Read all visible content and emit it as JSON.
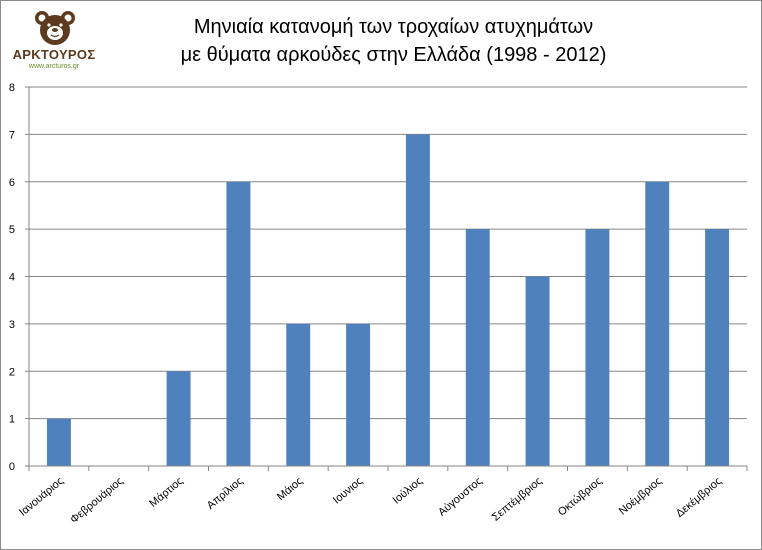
{
  "logo": {
    "name": "ΑΡΚΤΟΥΡΟΣ",
    "url": "www.arcturos.gr",
    "icon": "bear-head-icon",
    "colors": {
      "brown": "#5b3a1e",
      "green": "#6b8f2a"
    }
  },
  "chart_data": {
    "type": "bar",
    "title_lines": [
      "Μηνιαία κατανομή των τροχαίων ατυχημάτων",
      "με θύματα αρκούδες στην Ελλάδα (1998 - 2012)"
    ],
    "categories": [
      "Ιανουάριος",
      "Φεβρουάριος",
      "Μάρτιος",
      "Απρίλιος",
      "Μάιος",
      "Ιουνιος",
      "Ιούλιος",
      "Αύγουστος",
      "Σεπτέμβριος",
      "Οκτώβριος",
      "Νοέμβριος",
      "Δεκέμβριος"
    ],
    "values": [
      1,
      0,
      2,
      6,
      3,
      3,
      7,
      5,
      4,
      5,
      6,
      5
    ],
    "yticks": [
      "0",
      "1",
      "2",
      "3",
      "4",
      "5",
      "6",
      "7",
      "8"
    ],
    "ylim": [
      0,
      8
    ],
    "grid": true,
    "legend": "none",
    "bar_color": "#4f81bd",
    "grid_color": "#868686"
  }
}
